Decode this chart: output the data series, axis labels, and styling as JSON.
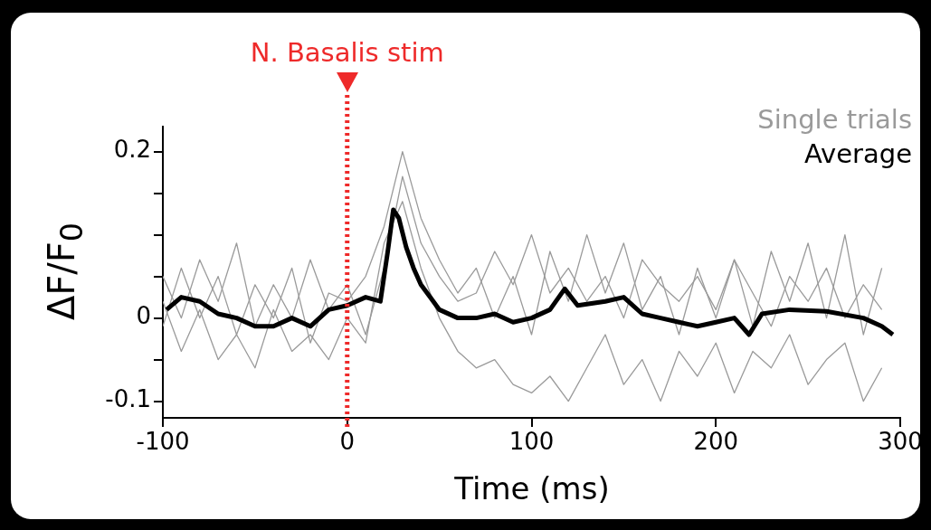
{
  "chart_data": {
    "type": "line",
    "xlabel": "Time (ms)",
    "ylabel": "ΔF/F$_{0}$",
    "xlim": [
      -100,
      300
    ],
    "xticks": [
      -100,
      0,
      100,
      200,
      300
    ],
    "ylim": [
      -0.12,
      0.23
    ],
    "yticks": [
      {
        "value": -0.1,
        "label": "-0.1"
      },
      {
        "value": -0.05,
        "label": null
      },
      0,
      {
        "value": 0.05,
        "label": null
      },
      {
        "value": 0.1,
        "label": null
      },
      {
        "value": 0.15,
        "label": null
      },
      0.2
    ],
    "grid": false,
    "legend": "top right",
    "marker": "none",
    "line_style": "solid",
    "x": [
      -100,
      -90,
      -80,
      -70,
      -60,
      -50,
      -40,
      -30,
      -20,
      -10,
      0,
      10,
      20,
      30,
      40,
      50,
      60,
      70,
      80,
      90,
      100,
      110,
      120,
      130,
      140,
      150,
      160,
      170,
      180,
      190,
      200,
      210,
      220,
      230,
      240,
      250,
      260,
      270,
      280,
      290
    ],
    "ref_lines": [
      {
        "axis": "x",
        "value": 0,
        "label": "N. Basalis stim",
        "color": "#ee2a2a",
        "line_style": "dotted"
      }
    ],
    "series": [
      {
        "name": "Single trials",
        "color": "#9a9a9a",
        "values": [
          -0.01,
          0.06,
          0.0,
          0.05,
          -0.02,
          0.04,
          0.0,
          0.06,
          -0.03,
          0.03,
          0.02,
          0.05,
          0.11,
          0.2,
          0.12,
          0.07,
          0.03,
          0.06,
          0.0,
          0.05,
          -0.02,
          0.08,
          0.02,
          0.1,
          0.03,
          0.09,
          0.01,
          0.05,
          -0.02,
          0.06,
          0.0,
          0.07,
          -0.01,
          0.08,
          0.02,
          0.09,
          0.0,
          0.1,
          -0.02,
          0.06
        ]
      },
      {
        "color": "#9a9a9a",
        "values": [
          0.02,
          -0.04,
          0.01,
          -0.05,
          -0.02,
          -0.06,
          0.01,
          -0.04,
          -0.02,
          -0.05,
          0.0,
          -0.03,
          0.09,
          0.14,
          0.06,
          0.0,
          -0.04,
          -0.06,
          -0.05,
          -0.08,
          -0.09,
          -0.07,
          -0.1,
          -0.06,
          -0.02,
          -0.08,
          -0.05,
          -0.1,
          -0.04,
          -0.07,
          -0.03,
          -0.09,
          -0.04,
          -0.06,
          -0.02,
          -0.08,
          -0.05,
          -0.03,
          -0.1,
          -0.06
        ]
      },
      {
        "color": "#9a9a9a",
        "values": [
          0.05,
          0.0,
          0.07,
          0.02,
          0.09,
          -0.01,
          0.04,
          0.0,
          0.07,
          0.01,
          0.04,
          -0.02,
          0.06,
          0.17,
          0.09,
          0.05,
          0.02,
          0.03,
          0.08,
          0.04,
          0.1,
          0.03,
          0.06,
          0.02,
          0.05,
          0.0,
          0.07,
          0.04,
          0.02,
          0.05,
          0.01,
          0.07,
          0.03,
          -0.01,
          0.05,
          0.02,
          0.06,
          0.0,
          0.04,
          0.01
        ]
      },
      {
        "name": "Average",
        "color": "#000000",
        "x": [
          -98,
          -90,
          -80,
          -70,
          -60,
          -50,
          -40,
          -30,
          -20,
          -10,
          0,
          10,
          18,
          22,
          25,
          28,
          32,
          36,
          40,
          45,
          50,
          60,
          70,
          80,
          90,
          100,
          110,
          118,
          125,
          140,
          150,
          160,
          170,
          180,
          190,
          200,
          210,
          218,
          225,
          240,
          260,
          280,
          290,
          296
        ],
        "values": [
          0.01,
          0.025,
          0.02,
          0.005,
          0.0,
          -0.01,
          -0.01,
          0.0,
          -0.01,
          0.01,
          0.015,
          0.025,
          0.02,
          0.08,
          0.13,
          0.12,
          0.085,
          0.06,
          0.04,
          0.025,
          0.01,
          0.0,
          0.0,
          0.005,
          -0.005,
          0.0,
          0.01,
          0.035,
          0.015,
          0.02,
          0.025,
          0.005,
          0.0,
          -0.005,
          -0.01,
          -0.005,
          0.0,
          -0.02,
          0.005,
          0.01,
          0.008,
          0.0,
          -0.01,
          -0.02
        ]
      }
    ]
  }
}
